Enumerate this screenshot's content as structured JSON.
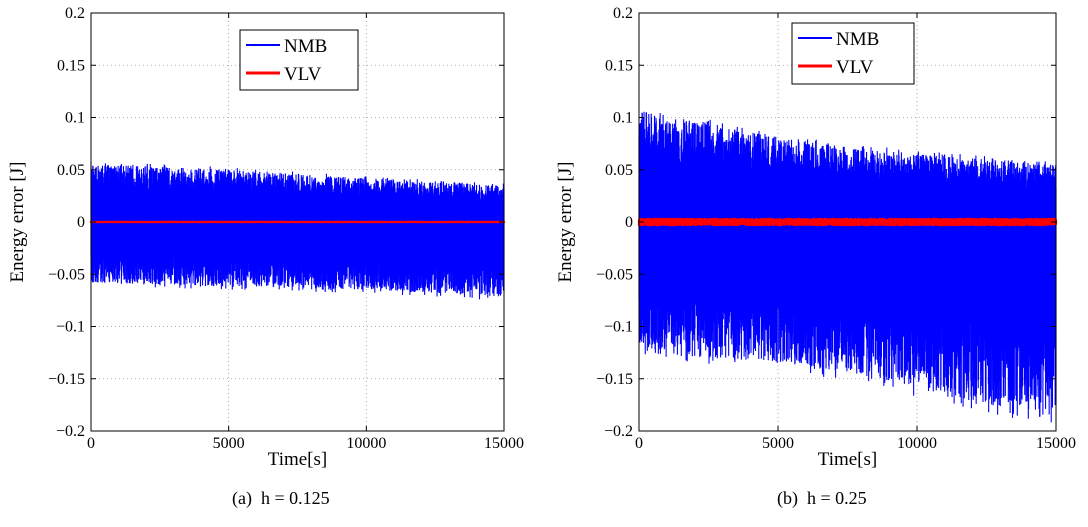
{
  "figure": {
    "captions": [
      "(a)  h = 0.125",
      "(b)  h = 0.25"
    ]
  },
  "colors": {
    "NMB": "#0000ff",
    "VLV": "#ff0000",
    "grid": "#999999"
  },
  "chart_data": [
    {
      "type": "line",
      "xlabel": "Time[s]",
      "ylabel": "Energy error [J]",
      "xlim": [
        0,
        15000
      ],
      "ylim": [
        -0.2,
        0.2
      ],
      "xticks": [
        0,
        5000,
        10000,
        15000
      ],
      "yticks": [
        -0.2,
        -0.15,
        -0.1,
        -0.05,
        0,
        0.05,
        0.1,
        0.15,
        0.2
      ],
      "ytick_labels": [
        "−0.2",
        "−0.15",
        "−0.1",
        "−0.05",
        "0",
        "0.05",
        "0.1",
        "0.15",
        "0.2"
      ],
      "grid": true,
      "legend_position": "top-center",
      "series": [
        {
          "name": "NMB",
          "color": "#0000ff",
          "style": "dense-oscillation",
          "x": [
            0,
            2500,
            5000,
            7500,
            10000,
            12500,
            15000
          ],
          "upper": [
            0.055,
            0.053,
            0.05,
            0.046,
            0.042,
            0.038,
            0.035
          ],
          "lower": [
            -0.058,
            -0.06,
            -0.062,
            -0.063,
            -0.065,
            -0.068,
            -0.072
          ]
        },
        {
          "name": "VLV",
          "color": "#ff0000",
          "style": "dense-oscillation",
          "x": [
            0,
            15000
          ],
          "upper": [
            0.001,
            0.001
          ],
          "lower": [
            -0.001,
            -0.001
          ]
        }
      ]
    },
    {
      "type": "line",
      "xlabel": "Time[s]",
      "ylabel": "Energy error [J]",
      "xlim": [
        0,
        15000
      ],
      "ylim": [
        -0.2,
        0.2
      ],
      "xticks": [
        0,
        5000,
        10000,
        15000
      ],
      "yticks": [
        -0.2,
        -0.15,
        -0.1,
        -0.05,
        0,
        0.05,
        0.1,
        0.15,
        0.2
      ],
      "ytick_labels": [
        "−0.2",
        "−0.15",
        "−0.1",
        "−0.05",
        "0",
        "0.05",
        "0.1",
        "0.15",
        "0.2"
      ],
      "grid": true,
      "legend_position": "top-center",
      "series": [
        {
          "name": "NMB",
          "color": "#0000ff",
          "style": "dense-oscillation",
          "x": [
            0,
            2500,
            5000,
            7500,
            10000,
            12500,
            15000
          ],
          "upper": [
            0.108,
            0.095,
            0.08,
            0.072,
            0.065,
            0.06,
            0.055
          ],
          "lower": [
            -0.125,
            -0.13,
            -0.135,
            -0.145,
            -0.16,
            -0.175,
            -0.185
          ]
        },
        {
          "name": "VLV",
          "color": "#ff0000",
          "style": "dense-oscillation",
          "x": [
            0,
            15000
          ],
          "upper": [
            0.004,
            0.004
          ],
          "lower": [
            -0.004,
            -0.004
          ]
        }
      ]
    }
  ]
}
